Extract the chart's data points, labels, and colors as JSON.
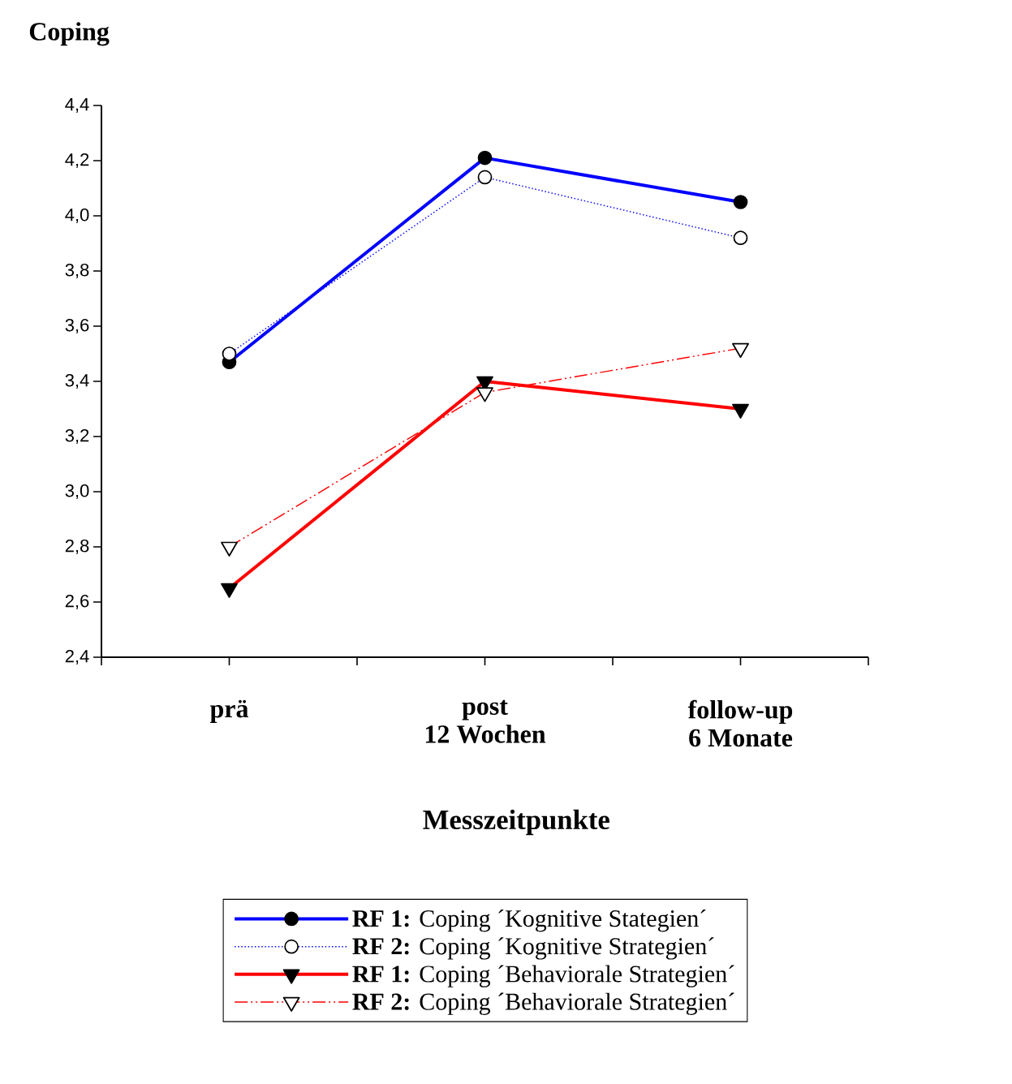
{
  "chart_data": {
    "type": "line",
    "title": "Coping",
    "xlabel": "Messzeitpunkte",
    "categories": [
      "prä",
      "post\n12 Wochen",
      "follow-up\n6 Monate"
    ],
    "ylim": [
      2.4,
      4.4
    ],
    "yticks": [
      {
        "value": 2.4,
        "label": "2,4"
      },
      {
        "value": 2.6,
        "label": "2,6"
      },
      {
        "value": 2.8,
        "label": "2,8"
      },
      {
        "value": 3.0,
        "label": "3,0"
      },
      {
        "value": 3.2,
        "label": "3,2"
      },
      {
        "value": 3.4,
        "label": "3,4"
      },
      {
        "value": 3.6,
        "label": "3,6"
      },
      {
        "value": 3.8,
        "label": "3,8"
      },
      {
        "value": 4.0,
        "label": "4,0"
      },
      {
        "value": 4.2,
        "label": "4,2"
      },
      {
        "value": 4.4,
        "label": "4,4"
      }
    ],
    "legend": "bottom",
    "grid": false,
    "series": [
      {
        "name": "**RF 1:** Coping ´Kognitive Stategien´",
        "color": "#0000ff",
        "marker": "circle",
        "line_style": "solid",
        "values": [
          3.47,
          4.21,
          4.05
        ]
      },
      {
        "name": "**RF 2:** Coping ´Kognitive Strategien´",
        "color": "#0000ff",
        "marker": "circle",
        "line_style": "dotted",
        "values": [
          3.5,
          4.14,
          3.92
        ]
      },
      {
        "name": "**RF 1:** Coping ´Behaviorale Strategien´",
        "color": "#ff0000",
        "marker": "triangle",
        "line_style": "solid",
        "values": [
          2.65,
          3.4,
          3.3
        ]
      },
      {
        "name": "**RF 2:** Coping ´Behaviorale Strategien´",
        "color": "#ff0000",
        "marker": "triangle",
        "line_style": "dashed",
        "values": [
          2.8,
          3.36,
          3.52
        ]
      }
    ]
  }
}
